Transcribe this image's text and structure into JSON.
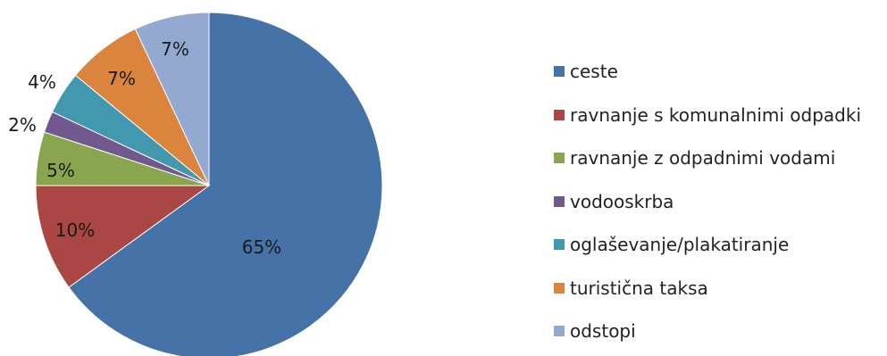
{
  "chart_data": {
    "type": "pie",
    "title": "",
    "categories": [
      "ceste",
      "ravnanje s komunalnimi odpadki",
      "ravnanje z odpadnimi vodami",
      "vodooskrba",
      "oglaševanje/plakatiranje",
      "turistična taksa",
      "odstopi"
    ],
    "values": [
      65,
      10,
      5,
      2,
      4,
      7,
      7
    ],
    "labels": [
      "65%",
      "10%",
      "5%",
      "2%",
      "4%",
      "7%",
      "7%"
    ],
    "colors": [
      "#4572A7",
      "#AA4643",
      "#89A54E",
      "#71588F",
      "#4198AF",
      "#DB843D",
      "#93A9CF"
    ],
    "legend_position": "right"
  }
}
